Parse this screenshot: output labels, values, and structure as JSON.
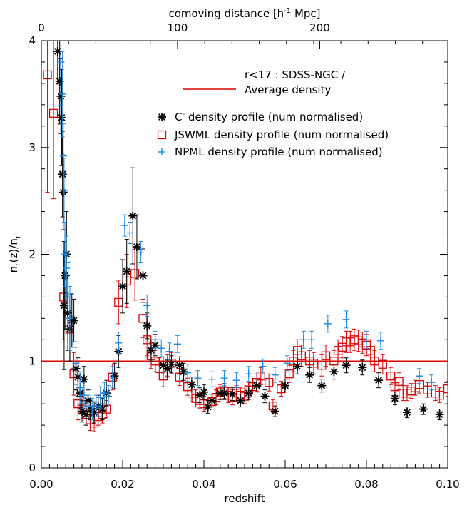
{
  "chart_data": {
    "type": "scatter",
    "xlabel": "redshift",
    "ylabel": "n_r(z)/n_r",
    "xlim": [
      0,
      0.1
    ],
    "ylim": [
      0,
      4
    ],
    "x_ticks": [
      "0.00",
      "0.02",
      "0.04",
      "0.06",
      "0.08",
      "0.10"
    ],
    "y_ticks": [
      "0",
      "1",
      "2",
      "3",
      "4"
    ],
    "top_axis": {
      "label": "comoving distance [h",
      "label_sup": "-1",
      "label_suffix": " Mpc]",
      "ticks": [
        "0",
        "100",
        "200"
      ],
      "tick_positions_z": [
        0.0,
        0.0335,
        0.0685
      ]
    },
    "grid": false,
    "reference_line": {
      "y": 1.0,
      "color": "#dd0000",
      "legend_line1": "r<17 : SDSS-NGC /",
      "legend_line2": "Average density"
    },
    "series": [
      {
        "name": "C",
        "name_sup": "-",
        "name_suffix": " density profile (num normalised)",
        "marker": "asterisk",
        "color": "#000000",
        "points": [
          [
            0.004,
            3.9,
            0.3
          ],
          [
            0.0045,
            3.62,
            0.4
          ],
          [
            0.0048,
            3.48,
            0.35
          ],
          [
            0.005,
            3.28,
            0.45
          ],
          [
            0.0052,
            2.75,
            0.4
          ],
          [
            0.0054,
            2.58,
            0.35
          ],
          [
            0.0056,
            1.52,
            0.6
          ],
          [
            0.0058,
            1.8,
            0.5
          ],
          [
            0.0062,
            2.0,
            0.4
          ],
          [
            0.0065,
            1.45,
            0.35
          ],
          [
            0.007,
            1.3,
            0.3
          ],
          [
            0.0075,
            1.38,
            0.25
          ],
          [
            0.008,
            1.38,
            0.2
          ],
          [
            0.0085,
            0.93,
            0.2
          ],
          [
            0.009,
            0.85,
            0.18
          ],
          [
            0.0095,
            0.7,
            0.15
          ],
          [
            0.01,
            0.53,
            0.1
          ],
          [
            0.0105,
            0.83,
            0.12
          ],
          [
            0.011,
            0.5,
            0.1
          ],
          [
            0.0115,
            0.63,
            0.1
          ],
          [
            0.012,
            0.55,
            0.1
          ],
          [
            0.013,
            0.52,
            0.1
          ],
          [
            0.014,
            0.58,
            0.1
          ],
          [
            0.015,
            0.55,
            0.1
          ],
          [
            0.016,
            0.7,
            0.12
          ],
          [
            0.018,
            0.86,
            0.12
          ],
          [
            0.019,
            1.09,
            0.15
          ],
          [
            0.02,
            1.7,
            0.25
          ],
          [
            0.021,
            1.84,
            0.3
          ],
          [
            0.0225,
            2.36,
            0.45
          ],
          [
            0.0235,
            2.07,
            0.3
          ],
          [
            0.025,
            1.8,
            0.25
          ],
          [
            0.026,
            1.33,
            0.12
          ],
          [
            0.027,
            1.1,
            0.1
          ],
          [
            0.028,
            1.15,
            0.1
          ],
          [
            0.03,
            0.96,
            0.08
          ],
          [
            0.031,
            0.93,
            0.08
          ],
          [
            0.032,
            0.97,
            0.08
          ],
          [
            0.034,
            0.96,
            0.08
          ],
          [
            0.035,
            0.9,
            0.08
          ],
          [
            0.037,
            0.78,
            0.07
          ],
          [
            0.039,
            0.68,
            0.07
          ],
          [
            0.04,
            0.71,
            0.07
          ],
          [
            0.041,
            0.57,
            0.06
          ],
          [
            0.042,
            0.63,
            0.06
          ],
          [
            0.044,
            0.7,
            0.06
          ],
          [
            0.045,
            0.7,
            0.06
          ],
          [
            0.047,
            0.69,
            0.06
          ],
          [
            0.049,
            0.63,
            0.06
          ],
          [
            0.051,
            0.7,
            0.06
          ],
          [
            0.053,
            0.77,
            0.06
          ],
          [
            0.055,
            0.67,
            0.06
          ],
          [
            0.0575,
            0.53,
            0.05
          ],
          [
            0.06,
            0.77,
            0.06
          ],
          [
            0.063,
            0.95,
            0.07
          ],
          [
            0.066,
            0.87,
            0.07
          ],
          [
            0.069,
            0.77,
            0.06
          ],
          [
            0.072,
            0.9,
            0.07
          ],
          [
            0.075,
            0.96,
            0.07
          ],
          [
            0.079,
            0.94,
            0.07
          ],
          [
            0.083,
            0.82,
            0.07
          ],
          [
            0.087,
            0.65,
            0.06
          ],
          [
            0.09,
            0.52,
            0.05
          ],
          [
            0.094,
            0.55,
            0.05
          ],
          [
            0.098,
            0.5,
            0.05
          ]
        ]
      },
      {
        "name": "JSWML density profile (num normalised)",
        "marker": "square",
        "color": "#dd0000",
        "points": [
          [
            0.0015,
            3.68,
            1.1
          ],
          [
            0.003,
            3.32,
            0.8
          ],
          [
            0.0055,
            1.6,
            0.4
          ],
          [
            0.007,
            1.3,
            0.3
          ],
          [
            0.008,
            0.88,
            0.2
          ],
          [
            0.009,
            0.6,
            0.15
          ],
          [
            0.01,
            0.55,
            0.12
          ],
          [
            0.011,
            0.5,
            0.1
          ],
          [
            0.012,
            0.45,
            0.1
          ],
          [
            0.013,
            0.42,
            0.08
          ],
          [
            0.014,
            0.48,
            0.08
          ],
          [
            0.015,
            0.5,
            0.08
          ],
          [
            0.016,
            0.55,
            0.08
          ],
          [
            0.0175,
            0.85,
            0.12
          ],
          [
            0.019,
            1.55,
            0.2
          ],
          [
            0.021,
            1.75,
            0.25
          ],
          [
            0.023,
            1.82,
            0.25
          ],
          [
            0.025,
            1.4,
            0.18
          ],
          [
            0.026,
            1.2,
            0.15
          ],
          [
            0.027,
            1.05,
            0.12
          ],
          [
            0.028,
            1.0,
            0.1
          ],
          [
            0.029,
            0.93,
            0.1
          ],
          [
            0.03,
            0.86,
            0.1
          ],
          [
            0.031,
            0.96,
            0.1
          ],
          [
            0.032,
            0.98,
            0.1
          ],
          [
            0.034,
            0.85,
            0.08
          ],
          [
            0.036,
            0.76,
            0.08
          ],
          [
            0.037,
            0.7,
            0.08
          ],
          [
            0.038,
            0.65,
            0.08
          ],
          [
            0.039,
            0.63,
            0.07
          ],
          [
            0.04,
            0.6,
            0.07
          ],
          [
            0.042,
            0.62,
            0.07
          ],
          [
            0.043,
            0.66,
            0.07
          ],
          [
            0.044,
            0.71,
            0.07
          ],
          [
            0.045,
            0.72,
            0.07
          ],
          [
            0.046,
            0.68,
            0.07
          ],
          [
            0.047,
            0.66,
            0.07
          ],
          [
            0.048,
            0.7,
            0.07
          ],
          [
            0.049,
            0.68,
            0.07
          ],
          [
            0.05,
            0.67,
            0.07
          ],
          [
            0.051,
            0.73,
            0.07
          ],
          [
            0.052,
            0.76,
            0.07
          ],
          [
            0.053,
            0.8,
            0.08
          ],
          [
            0.054,
            0.86,
            0.08
          ],
          [
            0.056,
            0.8,
            0.08
          ],
          [
            0.057,
            0.58,
            0.06
          ],
          [
            0.059,
            0.74,
            0.07
          ],
          [
            0.061,
            0.88,
            0.08
          ],
          [
            0.062,
            1.0,
            0.1
          ],
          [
            0.063,
            1.1,
            0.1
          ],
          [
            0.064,
            1.05,
            0.1
          ],
          [
            0.066,
            1.0,
            0.1
          ],
          [
            0.067,
            0.98,
            0.1
          ],
          [
            0.069,
            0.96,
            0.1
          ],
          [
            0.07,
            1.05,
            0.1
          ],
          [
            0.072,
            1.0,
            0.1
          ],
          [
            0.073,
            1.1,
            0.1
          ],
          [
            0.074,
            1.13,
            0.1
          ],
          [
            0.075,
            1.18,
            0.1
          ],
          [
            0.076,
            1.18,
            0.1
          ],
          [
            0.077,
            1.2,
            0.1
          ],
          [
            0.078,
            1.19,
            0.1
          ],
          [
            0.079,
            1.17,
            0.1
          ],
          [
            0.08,
            1.15,
            0.1
          ],
          [
            0.081,
            1.1,
            0.1
          ],
          [
            0.082,
            1.0,
            0.1
          ],
          [
            0.084,
            0.97,
            0.09
          ],
          [
            0.086,
            0.86,
            0.08
          ],
          [
            0.087,
            0.76,
            0.08
          ],
          [
            0.088,
            0.81,
            0.08
          ],
          [
            0.089,
            0.7,
            0.07
          ],
          [
            0.09,
            0.7,
            0.07
          ],
          [
            0.091,
            0.72,
            0.07
          ],
          [
            0.092,
            0.75,
            0.07
          ],
          [
            0.093,
            0.78,
            0.08
          ],
          [
            0.095,
            0.73,
            0.07
          ],
          [
            0.097,
            0.7,
            0.07
          ],
          [
            0.098,
            0.68,
            0.07
          ],
          [
            0.1,
            0.74,
            0.07
          ]
        ]
      },
      {
        "name": "NPML density profile (num normalised)",
        "marker": "plus",
        "color": "#2288dd",
        "points": [
          [
            0.0048,
            3.8,
            0.4
          ],
          [
            0.0052,
            3.5,
            0.4
          ],
          [
            0.0054,
            2.92,
            0.3
          ],
          [
            0.0056,
            2.6,
            0.3
          ],
          [
            0.0058,
            2.0,
            0.3
          ],
          [
            0.0062,
            1.87,
            0.3
          ],
          [
            0.0066,
            1.62,
            0.3
          ],
          [
            0.007,
            1.4,
            0.3
          ],
          [
            0.0078,
            1.18,
            0.25
          ],
          [
            0.0085,
            0.98,
            0.2
          ],
          [
            0.0095,
            0.75,
            0.15
          ],
          [
            0.0105,
            0.68,
            0.12
          ],
          [
            0.0115,
            0.58,
            0.1
          ],
          [
            0.0125,
            0.55,
            0.1
          ],
          [
            0.0135,
            0.58,
            0.1
          ],
          [
            0.0145,
            0.66,
            0.1
          ],
          [
            0.0155,
            0.7,
            0.1
          ],
          [
            0.0165,
            0.67,
            0.1
          ],
          [
            0.0175,
            0.85,
            0.1
          ],
          [
            0.019,
            1.17,
            0.1
          ],
          [
            0.0205,
            2.27,
            0.1
          ],
          [
            0.0218,
            2.2,
            0.1
          ],
          [
            0.0245,
            2.02,
            0.1
          ],
          [
            0.026,
            1.52,
            0.1
          ],
          [
            0.028,
            1.2,
            0.08
          ],
          [
            0.0295,
            1.12,
            0.08
          ],
          [
            0.0315,
            1.09,
            0.08
          ],
          [
            0.0335,
            1.16,
            0.08
          ],
          [
            0.036,
            0.89,
            0.08
          ],
          [
            0.0385,
            0.84,
            0.07
          ],
          [
            0.042,
            0.83,
            0.07
          ],
          [
            0.045,
            0.84,
            0.07
          ],
          [
            0.048,
            0.82,
            0.07
          ],
          [
            0.051,
            0.88,
            0.07
          ],
          [
            0.0545,
            0.95,
            0.07
          ],
          [
            0.0575,
            0.87,
            0.07
          ],
          [
            0.0605,
            0.98,
            0.07
          ],
          [
            0.0645,
            1.2,
            0.08
          ],
          [
            0.0665,
            1.2,
            0.08
          ],
          [
            0.0705,
            1.35,
            0.08
          ],
          [
            0.075,
            1.39,
            0.08
          ],
          [
            0.08,
            1.2,
            0.08
          ],
          [
            0.0835,
            1.19,
            0.08
          ],
          [
            0.093,
            0.86,
            0.07
          ],
          [
            0.096,
            0.8,
            0.07
          ]
        ]
      }
    ]
  }
}
